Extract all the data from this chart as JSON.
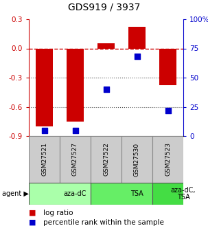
{
  "title": "GDS919 / 3937",
  "samples": [
    "GSM27521",
    "GSM27527",
    "GSM27522",
    "GSM27530",
    "GSM27523"
  ],
  "log_ratio": [
    -0.8,
    -0.75,
    0.05,
    0.22,
    -0.38
  ],
  "percentile_rank": [
    5,
    5,
    40,
    68,
    22
  ],
  "ylim_left": [
    -0.9,
    0.3
  ],
  "ylim_right": [
    0,
    100
  ],
  "yticks_left": [
    0.3,
    0.0,
    -0.3,
    -0.6,
    -0.9
  ],
  "yticks_right": [
    100,
    75,
    50,
    25,
    0
  ],
  "agent_groups": [
    {
      "label": "aza-dC",
      "spans": [
        0,
        2
      ],
      "color": "#aaffaa"
    },
    {
      "label": "TSA",
      "spans": [
        2,
        4
      ],
      "color": "#66ee66"
    },
    {
      "label": "aza-dC,\nTSA",
      "spans": [
        4,
        5
      ],
      "color": "#44dd44"
    }
  ],
  "bar_color": "#cc0000",
  "dot_color": "#0000cc",
  "bar_width": 0.55,
  "dot_size": 35,
  "sample_box_color": "#cccccc",
  "legend_bar_label": "log ratio",
  "legend_dot_label": "percentile rank within the sample",
  "zero_line_color": "#cc0000",
  "zero_line_style": "--",
  "grid_color": "#555555",
  "grid_style": ":"
}
